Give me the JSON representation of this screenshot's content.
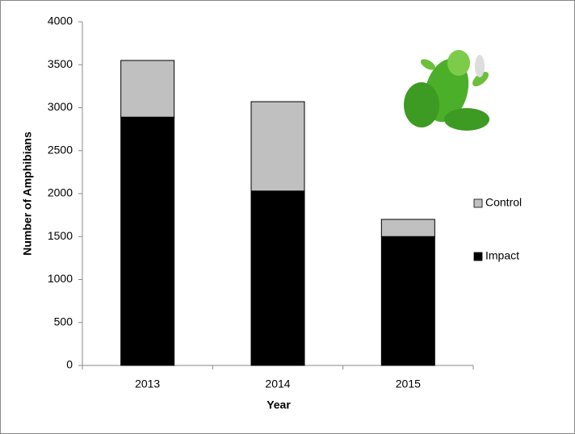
{
  "chart_data": {
    "type": "stacked_bar",
    "x_label": "Year",
    "y_label": "Number of Amphibians",
    "categories": [
      "2013",
      "2014",
      "2015"
    ],
    "series": [
      {
        "name": "Impact",
        "color": "#000000",
        "values": [
          2890,
          2030,
          1500
        ]
      },
      {
        "name": "Control",
        "color": "#c0c0c0",
        "values": [
          660,
          1040,
          200
        ]
      }
    ],
    "ylim": [
      0,
      4000
    ],
    "yticks": [
      0,
      500,
      1000,
      1500,
      2000,
      2500,
      3000,
      3500,
      4000
    ],
    "legend": "right"
  }
}
